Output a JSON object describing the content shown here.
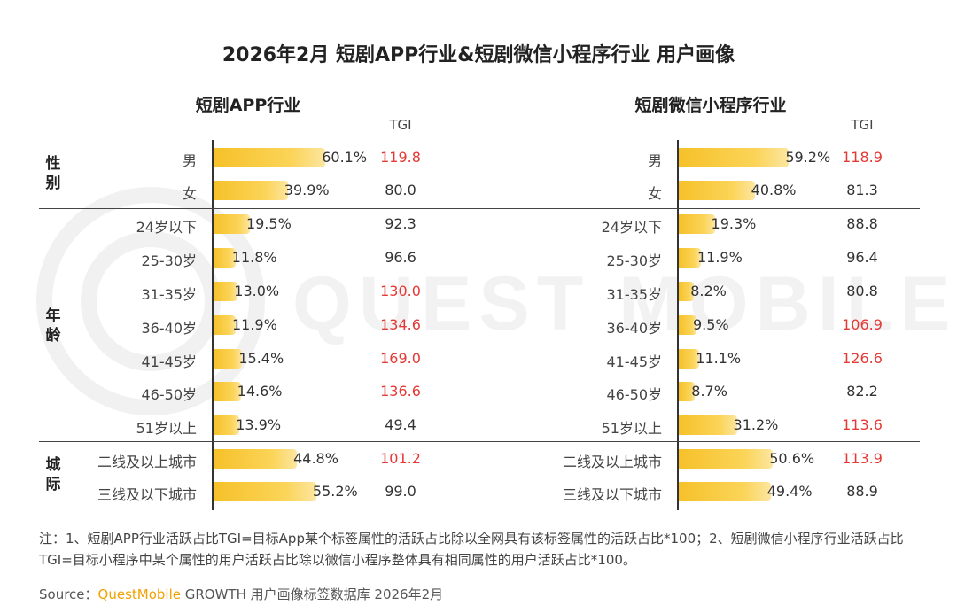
{
  "title": "2026年2月 短剧APP行业&短剧微信小程序行业 用户画像",
  "colors": {
    "bar": "#f6c12a",
    "tgi_high": "#e53935",
    "brand": "#f2a100"
  },
  "tgi_header": "TGI",
  "groups": [
    {
      "label_top": "性",
      "label_bottom": "别"
    },
    {
      "label_top": "年",
      "label_bottom": "龄"
    },
    {
      "label_top": "城",
      "label_bottom": "际"
    }
  ],
  "chart_data": [
    {
      "type": "bar",
      "title": "短剧APP行业",
      "orientation": "horizontal",
      "unit": "%",
      "categories": [
        "男",
        "女",
        "24岁以下",
        "25-30岁",
        "31-35岁",
        "36-40岁",
        "41-45岁",
        "46-50岁",
        "51岁以上",
        "二线及以上城市",
        "三线及以下城市"
      ],
      "values": [
        60.1,
        39.9,
        19.5,
        11.8,
        13.0,
        11.9,
        15.4,
        14.6,
        13.9,
        44.8,
        55.2
      ],
      "value_labels": [
        "60.1%",
        "39.9%",
        "19.5%",
        "11.8%",
        "13.0%",
        "11.9%",
        "15.4%",
        "14.6%",
        "13.9%",
        "44.8%",
        "55.2%"
      ],
      "tgi": [
        "119.8",
        "80.0",
        "92.3",
        "96.6",
        "130.0",
        "134.6",
        "169.0",
        "136.6",
        "49.4",
        "101.2",
        "99.0"
      ],
      "tgi_high": [
        true,
        false,
        false,
        false,
        true,
        true,
        true,
        true,
        false,
        true,
        false
      ]
    },
    {
      "type": "bar",
      "title": "短剧微信小程序行业",
      "orientation": "horizontal",
      "unit": "%",
      "categories": [
        "男",
        "女",
        "24岁以下",
        "25-30岁",
        "31-35岁",
        "36-40岁",
        "41-45岁",
        "46-50岁",
        "51岁以上",
        "二线及以上城市",
        "三线及以下城市"
      ],
      "values": [
        59.2,
        40.8,
        19.3,
        11.9,
        8.2,
        9.5,
        11.1,
        8.7,
        31.2,
        50.6,
        49.4
      ],
      "value_labels": [
        "59.2%",
        "40.8%",
        "19.3%",
        "11.9%",
        "8.2%",
        "9.5%",
        "11.1%",
        "8.7%",
        "31.2%",
        "50.6%",
        "49.4%"
      ],
      "tgi": [
        "118.9",
        "81.3",
        "88.8",
        "96.4",
        "80.8",
        "106.9",
        "126.6",
        "82.2",
        "113.6",
        "113.9",
        "88.9"
      ],
      "tgi_high": [
        true,
        false,
        false,
        false,
        false,
        true,
        true,
        false,
        true,
        true,
        false
      ]
    }
  ],
  "note": "注：1、短剧APP行业活跃占比TGI=目标App某个标签属性的活跃占比除以全网具有该标签属性的活跃占比*100；2、短剧微信小程序行业活跃占比TGI=目标小程序中某个属性的用户活跃占比除以微信小程序整体具有相同属性的用户活跃占比*100。",
  "source": {
    "prefix": "Source：",
    "brand": "QuestMobile",
    "suffix": " GROWTH 用户画像标签数据库 2026年2月"
  },
  "watermark": "QUEST MOBILE"
}
